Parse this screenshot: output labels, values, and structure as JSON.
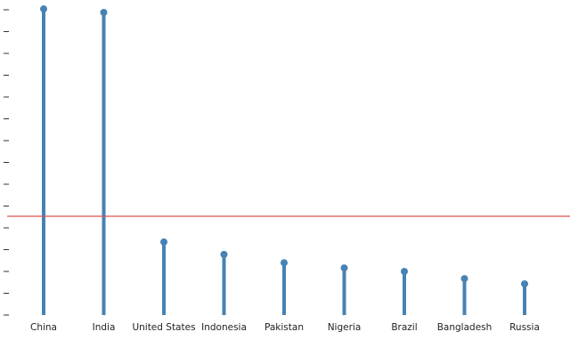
{
  "chart_data": {
    "type": "lollipop",
    "categories": [
      "China",
      "India",
      "United States",
      "Indonesia",
      "Pakistan",
      "Nigeria",
      "Brazil",
      "Bangladesh",
      "Russia"
    ],
    "values": [
      1404,
      1388,
      335,
      278,
      240,
      216,
      200,
      167,
      143
    ],
    "color": "#4682b4",
    "ylim": [
      0,
      1400
    ],
    "yticks": [
      0,
      100,
      200,
      300,
      400,
      500,
      600,
      700,
      800,
      900,
      1000,
      1100,
      1200,
      1300,
      1400
    ],
    "reference_line": {
      "value": 453,
      "color": "#d9534f"
    }
  }
}
